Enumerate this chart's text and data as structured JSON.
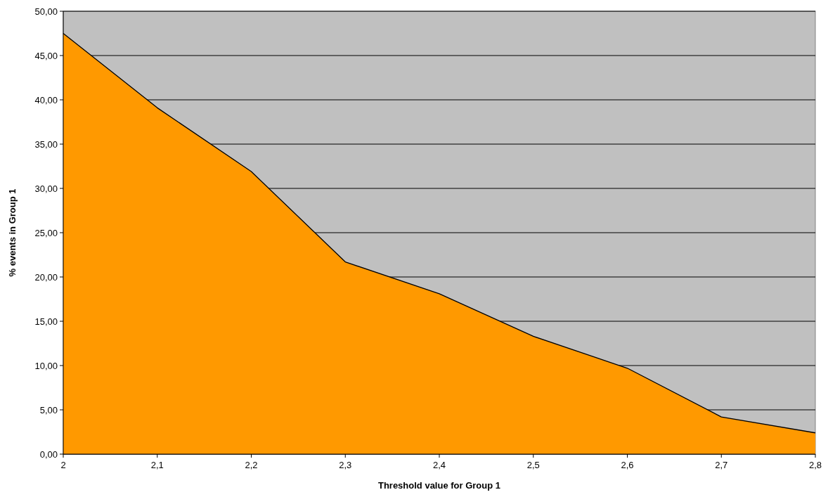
{
  "chart_data": {
    "type": "area",
    "xlabel": "Threshold value for Group 1",
    "ylabel": "% events in Group 1",
    "x": [
      2,
      2.1,
      2.2,
      2.3,
      2.4,
      2.5,
      2.6,
      2.7,
      2.8
    ],
    "values": [
      47.5,
      39.1,
      31.9,
      21.7,
      18.1,
      13.3,
      9.7,
      4.2,
      2.4
    ],
    "color": "#ff9900",
    "xlim": [
      2,
      2.8
    ],
    "xticks": [
      {
        "value": 2,
        "label": "2"
      },
      {
        "value": 2.1,
        "label": "2,1"
      },
      {
        "value": 2.2,
        "label": "2,2"
      },
      {
        "value": 2.3,
        "label": "2,3"
      },
      {
        "value": 2.4,
        "label": "2,4"
      },
      {
        "value": 2.5,
        "label": "2,5"
      },
      {
        "value": 2.6,
        "label": "2,6"
      },
      {
        "value": 2.7,
        "label": "2,7"
      },
      {
        "value": 2.8,
        "label": "2,8"
      }
    ],
    "ylim": [
      0,
      50
    ],
    "yticks": [
      {
        "value": 0,
        "label": "0,00"
      },
      {
        "value": 5,
        "label": "5,00"
      },
      {
        "value": 10,
        "label": "10,00"
      },
      {
        "value": 15,
        "label": "15,00"
      },
      {
        "value": 20,
        "label": "20,00"
      },
      {
        "value": 25,
        "label": "25,00"
      },
      {
        "value": 30,
        "label": "30,00"
      },
      {
        "value": 35,
        "label": "35,00"
      },
      {
        "value": 40,
        "label": "40,00"
      },
      {
        "value": 45,
        "label": "45,00"
      },
      {
        "value": 50,
        "label": "50,00"
      }
    ],
    "grid": "y"
  }
}
